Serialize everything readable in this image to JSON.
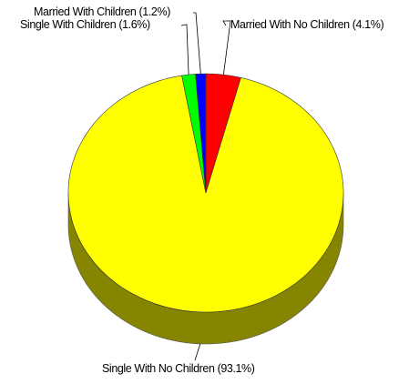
{
  "chart_data": {
    "type": "pie",
    "style": "3d",
    "slices": [
      {
        "label": "Married With No Children (4.1%)",
        "name": "Married With No Children",
        "percent": 4.1,
        "color": "#ff0000"
      },
      {
        "label": "Single With No Children (93.1%)",
        "name": "Single With No Children",
        "percent": 93.1,
        "color": "#ffff00"
      },
      {
        "label": "Single With Children (1.6%)",
        "name": "Single With Children",
        "percent": 1.6,
        "color": "#00ff00"
      },
      {
        "label": "Married With Children (1.2%)",
        "name": "Married With Children",
        "percent": 1.2,
        "color": "#0000ff"
      }
    ],
    "start": "12 o'clock",
    "direction": "clockwise",
    "legend": "none"
  }
}
